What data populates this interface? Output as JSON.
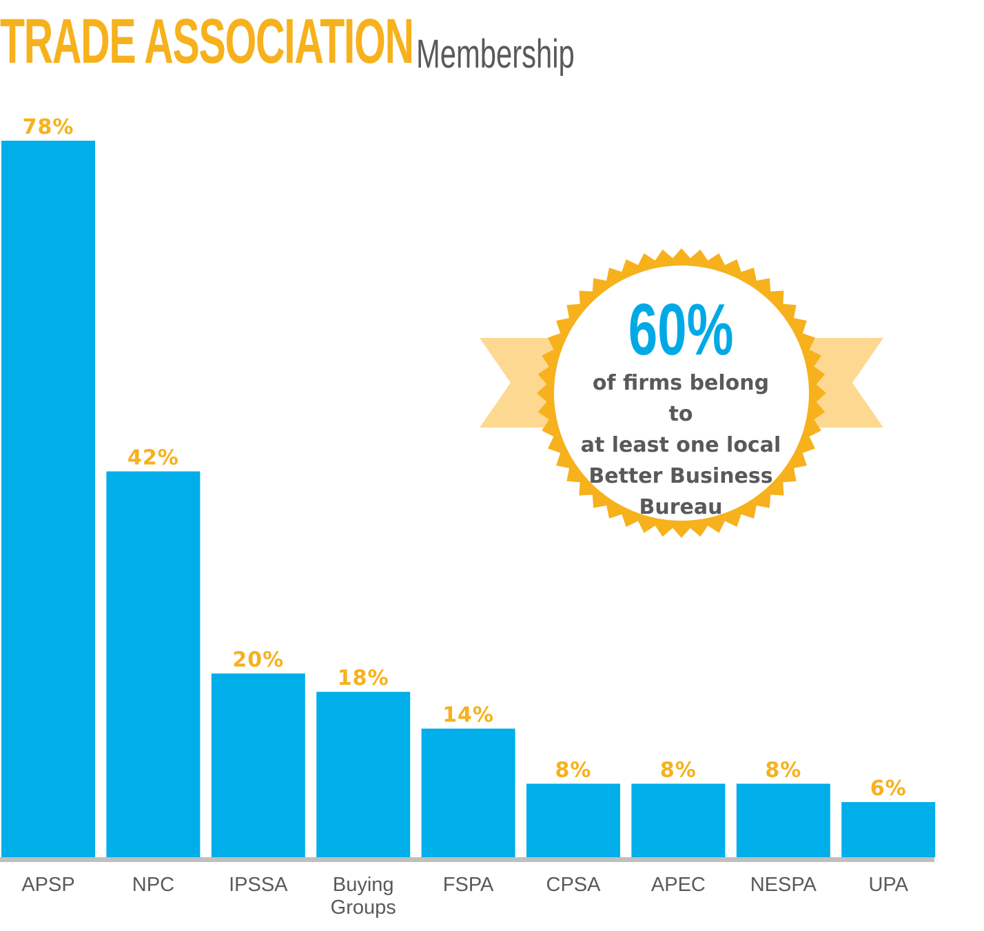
{
  "title": {
    "main": "TRADE ASSOCIATION",
    "sub": "Membership"
  },
  "badge": {
    "value": "60%",
    "caption_lines": [
      "of firms belong to",
      "at least one local",
      "Better Business",
      "Bureau"
    ]
  },
  "colors": {
    "bar": "#00aeea",
    "label": "#f6b11c",
    "axis": "#bfbfbf",
    "text": "#58595b",
    "badge_ring": "#f6b11c",
    "ribbon": "#fdd891"
  },
  "chart_data": {
    "type": "bar",
    "categories": [
      "APSP",
      "NPC",
      "IPSSA",
      "Buying Groups",
      "FSPA",
      "CPSA",
      "APEC",
      "NESPA",
      "UPA"
    ],
    "category_lines": [
      [
        "APSP"
      ],
      [
        "NPC"
      ],
      [
        "IPSSA"
      ],
      [
        "Buying",
        "Groups"
      ],
      [
        "FSPA"
      ],
      [
        "CPSA"
      ],
      [
        "APEC"
      ],
      [
        "NESPA"
      ],
      [
        "UPA"
      ]
    ],
    "values": [
      78,
      42,
      20,
      18,
      14,
      8,
      8,
      8,
      6
    ],
    "data_labels": [
      "78%",
      "42%",
      "20%",
      "18%",
      "14%",
      "8%",
      "8%",
      "8%",
      "6%"
    ],
    "title": "TRADE ASSOCIATION Membership",
    "xlabel": "",
    "ylabel": "",
    "ylim": [
      0,
      78
    ],
    "grid": false,
    "legend": "none"
  }
}
